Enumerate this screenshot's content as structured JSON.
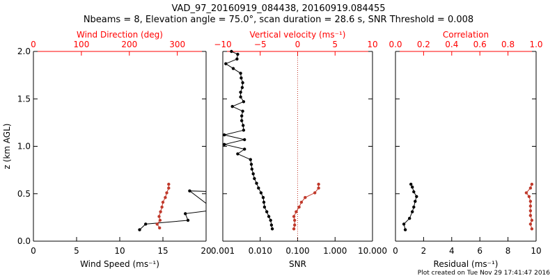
{
  "title": {
    "line1": "VAD_97_20160919_084438, 20160919.084455",
    "line2": "Nbeams = 8, Elevation angle = 75.0°, scan duration = 28.6 s, SNR Threshold = 0.008"
  },
  "footer": {
    "credit": "Plot created on Tue Nov 29 17:41:47 2016"
  },
  "colors": {
    "black": "#000000",
    "red": "#c0392b",
    "axis_red": "#ff0000",
    "background": "#ffffff"
  },
  "chart_data": [
    {
      "type": "line",
      "panel": "wind",
      "ylabel": "z (km AGL)",
      "ylim": [
        0,
        2.0
      ],
      "yticks": [
        0.0,
        0.5,
        1.0,
        1.5,
        2.0
      ],
      "ytick_labels": [
        "0.0",
        "0.5",
        "1.0",
        "1.5",
        "2.0"
      ],
      "bottom_axis": {
        "label": "Wind Speed (ms⁻¹)",
        "lim": [
          0,
          20
        ],
        "ticks": [
          0,
          5,
          10,
          15,
          20
        ],
        "tick_labels": [
          "0",
          "5",
          "10",
          "15",
          "20"
        ],
        "scale": "linear"
      },
      "top_axis": {
        "label": "Wind Direction (deg)",
        "lim": [
          0,
          360
        ],
        "ticks": [
          0,
          100,
          200,
          300
        ],
        "tick_labels": [
          "0",
          "100",
          "200",
          "300"
        ],
        "scale": "linear"
      },
      "series": [
        {
          "axis": "bottom",
          "color": "#000000",
          "points": [
            [
              12.3,
              0.12
            ],
            [
              13.0,
              0.18
            ],
            [
              17.9,
              0.22
            ],
            [
              17.6,
              0.29
            ],
            [
              21.0,
              0.33
            ],
            [
              18.1,
              0.53
            ],
            [
              22.0,
              0.52
            ]
          ]
        },
        {
          "axis": "top",
          "color": "#c0392b",
          "points": [
            [
              263,
              0.14
            ],
            [
              258,
              0.18
            ],
            [
              264,
              0.22
            ],
            [
              262,
              0.26
            ],
            [
              265,
              0.31
            ],
            [
              268,
              0.36
            ],
            [
              270,
              0.41
            ],
            [
              275,
              0.46
            ],
            [
              278,
              0.51
            ],
            [
              282,
              0.56
            ],
            [
              282,
              0.6
            ]
          ]
        }
      ]
    },
    {
      "type": "line",
      "panel": "snr",
      "bottom_axis": {
        "label": "SNR",
        "lim": [
          0.001,
          10
        ],
        "ticks": [
          0.001,
          0.01,
          0.1,
          1,
          10
        ],
        "tick_labels": [
          "0.001",
          "0.010",
          "0.100",
          "1.000",
          "10.000"
        ],
        "scale": "log"
      },
      "top_axis": {
        "label": "Vertical velocity (ms⁻¹)",
        "lim": [
          -10,
          10
        ],
        "ticks": [
          -10,
          -5,
          0,
          5,
          10
        ],
        "tick_labels": [
          "−10",
          "−5",
          "0",
          "5",
          "10"
        ],
        "scale": "linear"
      },
      "reference_line": {
        "axis": "top",
        "value": 0,
        "style": "dotted",
        "color": "#c0392b"
      },
      "series": [
        {
          "axis": "bottom",
          "color": "#000000",
          "points": [
            [
              0.021,
              0.13
            ],
            [
              0.02,
              0.17
            ],
            [
              0.019,
              0.22
            ],
            [
              0.017,
              0.26
            ],
            [
              0.015,
              0.31
            ],
            [
              0.013,
              0.36
            ],
            [
              0.0125,
              0.41
            ],
            [
              0.012,
              0.46
            ],
            [
              0.0105,
              0.51
            ],
            [
              0.009,
              0.56
            ],
            [
              0.008,
              0.61
            ],
            [
              0.007,
              0.66
            ],
            [
              0.0065,
              0.71
            ],
            [
              0.006,
              0.76
            ],
            [
              0.0058,
              0.81
            ],
            [
              0.0055,
              0.86
            ],
            [
              0.0025,
              0.92
            ],
            [
              0.0038,
              0.97
            ],
            [
              0.0011,
              1.02
            ],
            [
              0.0038,
              1.07
            ],
            [
              0.0011,
              1.12
            ],
            [
              0.0036,
              1.17
            ],
            [
              0.0035,
              1.22
            ],
            [
              0.0032,
              1.27
            ],
            [
              0.0032,
              1.32
            ],
            [
              0.0034,
              1.37
            ],
            [
              0.0018,
              1.42
            ],
            [
              0.0036,
              1.47
            ],
            [
              0.003,
              1.52
            ],
            [
              0.003,
              1.57
            ],
            [
              0.0033,
              1.62
            ],
            [
              0.0034,
              1.67
            ],
            [
              0.0031,
              1.72
            ],
            [
              0.003,
              1.77
            ],
            [
              0.0019,
              1.82
            ],
            [
              0.0012,
              1.87
            ],
            [
              0.0024,
              1.92
            ],
            [
              0.0025,
              1.97
            ],
            [
              0.0017,
              2.0
            ]
          ]
        },
        {
          "axis": "top",
          "color": "#c0392b",
          "points": [
            [
              -0.5,
              0.13
            ],
            [
              -0.4,
              0.17
            ],
            [
              -0.4,
              0.22
            ],
            [
              -0.5,
              0.26
            ],
            [
              -0.2,
              0.31
            ],
            [
              0.2,
              0.36
            ],
            [
              0.5,
              0.41
            ],
            [
              1.0,
              0.46
            ],
            [
              2.3,
              0.51
            ],
            [
              2.8,
              0.56
            ],
            [
              2.8,
              0.6
            ]
          ]
        }
      ]
    },
    {
      "type": "line",
      "panel": "residual",
      "bottom_axis": {
        "label": "Residual (ms⁻¹)",
        "lim": [
          0,
          10
        ],
        "ticks": [
          0,
          2,
          4,
          6,
          8,
          10
        ],
        "tick_labels": [
          "0",
          "2",
          "4",
          "6",
          "8",
          "10"
        ],
        "scale": "linear"
      },
      "top_axis": {
        "label": "Correlation",
        "lim": [
          0,
          1
        ],
        "ticks": [
          0,
          0.2,
          0.4,
          0.6,
          0.8,
          1.0
        ],
        "tick_labels": [
          "0.0",
          "0.2",
          "0.4",
          "0.6",
          "0.8",
          "1.0"
        ],
        "scale": "linear"
      },
      "series": [
        {
          "axis": "bottom",
          "color": "#000000",
          "points": [
            [
              0.7,
              0.12
            ],
            [
              0.6,
              0.18
            ],
            [
              1.0,
              0.24
            ],
            [
              1.2,
              0.31
            ],
            [
              1.3,
              0.36
            ],
            [
              1.4,
              0.42
            ],
            [
              1.5,
              0.47
            ],
            [
              1.3,
              0.52
            ],
            [
              1.2,
              0.57
            ],
            [
              1.1,
              0.6
            ]
          ]
        },
        {
          "axis": "top",
          "color": "#c0392b",
          "points": [
            [
              0.97,
              0.13
            ],
            [
              0.96,
              0.18
            ],
            [
              0.97,
              0.22
            ],
            [
              0.96,
              0.27
            ],
            [
              0.96,
              0.32
            ],
            [
              0.96,
              0.37
            ],
            [
              0.96,
              0.42
            ],
            [
              0.95,
              0.47
            ],
            [
              0.93,
              0.51
            ],
            [
              0.96,
              0.56
            ],
            [
              0.97,
              0.6
            ]
          ]
        }
      ]
    }
  ]
}
